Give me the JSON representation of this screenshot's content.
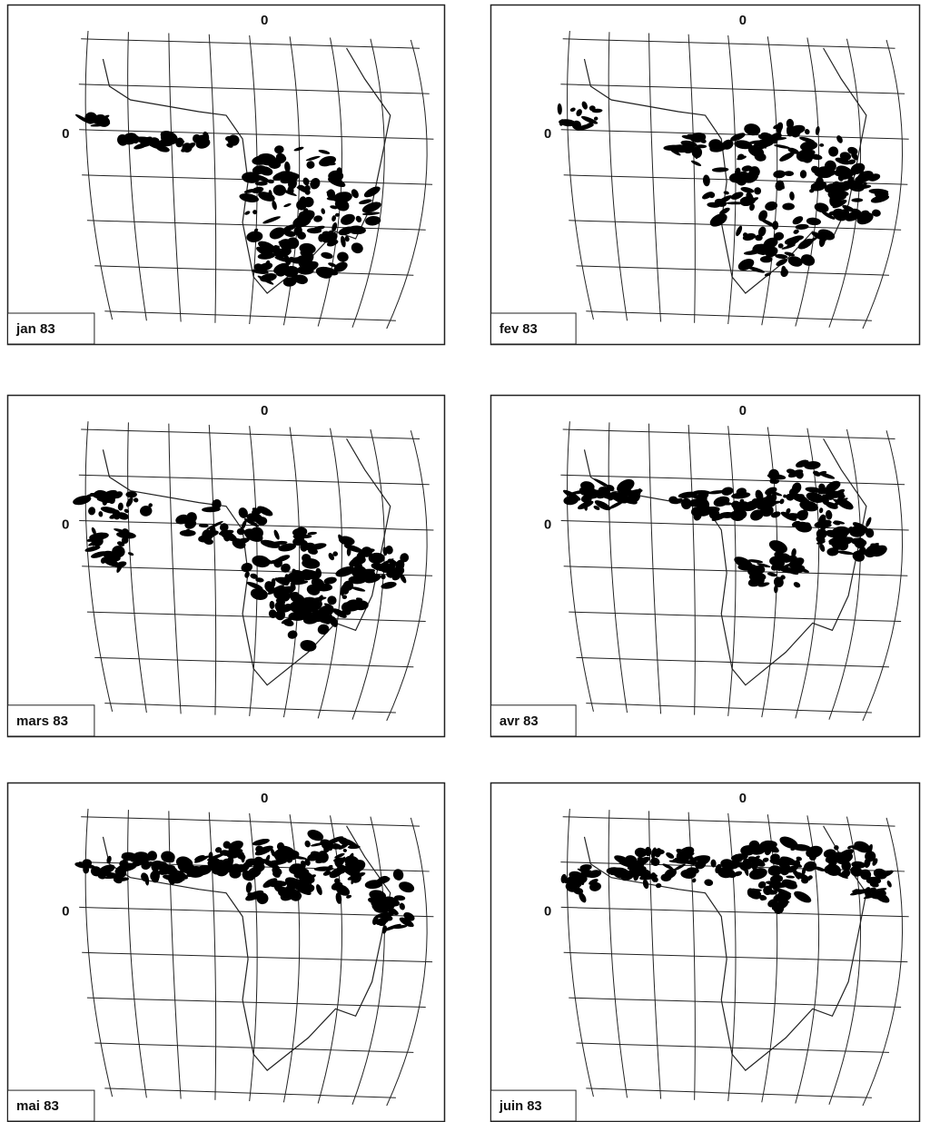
{
  "panels": [
    {
      "label": "jan 83",
      "meridian_label": "0",
      "parallel_label": "0"
    },
    {
      "label": "fev 83",
      "meridian_label": "0",
      "parallel_label": "0"
    },
    {
      "label": "mars 83",
      "meridian_label": "0",
      "parallel_label": "0"
    },
    {
      "label": "avr 83",
      "meridian_label": "0",
      "parallel_label": "0"
    },
    {
      "label": "mai 83",
      "meridian_label": "0",
      "parallel_label": "0"
    },
    {
      "label": "juin 83",
      "meridian_label": "0",
      "parallel_label": "0"
    }
  ]
}
